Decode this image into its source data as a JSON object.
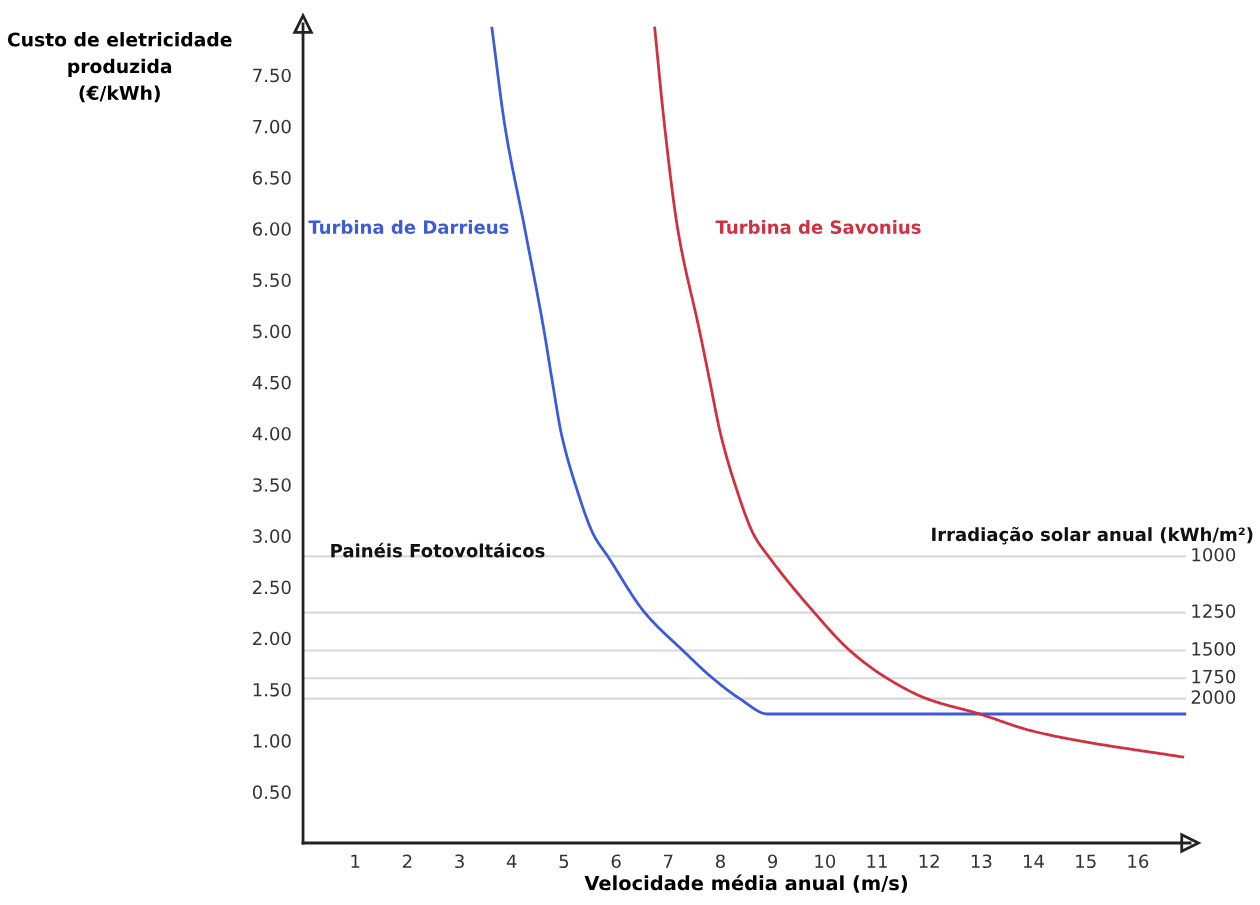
{
  "chart_data": {
    "type": "line",
    "xlabel": "Velocidade média anual (m/s)",
    "ylabel": "Custo de eletricidade\nproduzida\n(€/kWh)",
    "xlim": [
      0,
      17
    ],
    "ylim": [
      0,
      8
    ],
    "xticks": [
      1,
      2,
      3,
      4,
      5,
      6,
      7,
      8,
      9,
      10,
      11,
      12,
      13,
      14,
      15,
      16
    ],
    "yticks": [
      {
        "value": 0.5,
        "label": "0.50"
      },
      {
        "value": 1.0,
        "label": "1.00"
      },
      {
        "value": 1.5,
        "label": "1.50"
      },
      {
        "value": 2.0,
        "label": "2.00"
      },
      {
        "value": 2.5,
        "label": "2.50"
      },
      {
        "value": 3.0,
        "label": "3.00"
      },
      {
        "value": 3.5,
        "label": "3.50"
      },
      {
        "value": 4.0,
        "label": "4.00"
      },
      {
        "value": 4.5,
        "label": "4.50"
      },
      {
        "value": 5.0,
        "label": "5.00"
      },
      {
        "value": 5.5,
        "label": "5.50"
      },
      {
        "value": 6.0,
        "label": "6.00"
      },
      {
        "value": 6.5,
        "label": "6.50"
      },
      {
        "value": 7.0,
        "label": "7.00"
      },
      {
        "value": 7.5,
        "label": "7.50"
      }
    ],
    "grid": false,
    "legend": false,
    "marker": "none",
    "line_style": "solid",
    "series": [
      {
        "name": "Turbina de Darrieus",
        "color": "#3b5bd9",
        "x": [
          3.62,
          3.87,
          4.25,
          4.62,
          4.78,
          4.95,
          5.22,
          5.58,
          5.84,
          6.55,
          7.28,
          7.85,
          8.37,
          8.91,
          16.9
        ],
        "values": [
          7.96,
          7.0,
          6.0,
          5.0,
          4.5,
          4.0,
          3.5,
          3.0,
          2.8,
          2.25,
          1.88,
          1.61,
          1.41,
          1.26,
          1.26
        ]
      },
      {
        "name": "Turbina de Savonius",
        "color": "#d0303f",
        "x": [
          6.74,
          6.93,
          7.18,
          7.6,
          7.8,
          8.0,
          8.28,
          8.65,
          8.92,
          9.8,
          10.48,
          11.19,
          11.95,
          12.97,
          13.93,
          14.75,
          16.86
        ],
        "values": [
          7.96,
          7.0,
          6.0,
          5.0,
          4.5,
          4.0,
          3.5,
          3.0,
          2.8,
          2.25,
          1.88,
          1.61,
          1.41,
          1.26,
          1.1,
          1.01,
          0.84
        ]
      },
      {
        "name": "1000",
        "color": "#d9d9d9",
        "x": [
          0,
          16.9
        ],
        "values": [
          2.8,
          2.8
        ]
      },
      {
        "name": "1250",
        "color": "#d9d9d9",
        "x": [
          0,
          16.9
        ],
        "values": [
          2.25,
          2.25
        ]
      },
      {
        "name": "1500",
        "color": "#d9d9d9",
        "x": [
          0,
          16.9
        ],
        "values": [
          1.88,
          1.88
        ]
      },
      {
        "name": "1750",
        "color": "#d9d9d9",
        "x": [
          0,
          16.9
        ],
        "values": [
          1.61,
          1.61
        ]
      },
      {
        "name": "2000",
        "color": "#d9d9d9",
        "x": [
          0,
          16.9
        ],
        "values": [
          1.41,
          1.41
        ]
      }
    ],
    "annotations": [
      "Painéis Fotovoltáicos",
      "Irradiação solar anual (kWh/m²)"
    ]
  }
}
